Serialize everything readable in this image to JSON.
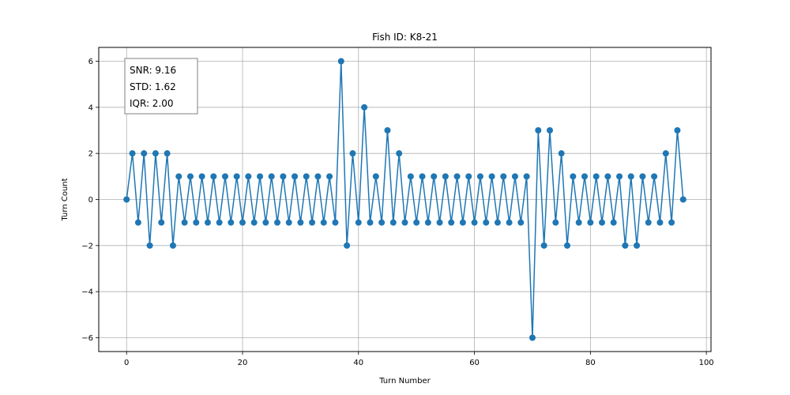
{
  "chart_data": {
    "type": "line",
    "title": "Fish ID: K8-21",
    "xlabel": "Turn Number",
    "ylabel": "Turn Count",
    "xlim": [
      -4.8,
      100.8
    ],
    "ylim": [
      -6.6,
      6.6
    ],
    "xticks": [
      0,
      20,
      40,
      60,
      80,
      100
    ],
    "yticks": [
      -6,
      -4,
      -2,
      0,
      2,
      4,
      6
    ],
    "ytick_labels": [
      "−6",
      "−4",
      "−2",
      "0",
      "2",
      "4",
      "6"
    ],
    "xtick_labels": [
      "0",
      "20",
      "40",
      "60",
      "80",
      "100"
    ],
    "grid": true,
    "marker": "circle",
    "color": "#1f77b4",
    "series": [
      {
        "x": [
          0,
          1,
          2,
          3,
          4,
          5,
          6,
          7,
          8,
          9,
          10,
          11,
          12,
          13,
          14,
          15,
          16,
          17,
          18,
          19,
          20,
          21,
          22,
          23,
          24,
          25,
          26,
          27,
          28,
          29,
          30,
          31,
          32,
          33,
          34,
          35,
          36,
          37,
          38,
          39,
          40,
          41,
          42,
          43,
          44,
          45,
          46,
          47,
          48,
          49,
          50,
          51,
          52,
          53,
          54,
          55,
          56,
          57,
          58,
          59,
          60,
          61,
          62,
          63,
          64,
          65,
          66,
          67,
          68,
          69,
          70,
          71,
          72,
          73,
          74,
          75,
          76,
          77,
          78,
          79,
          80,
          81,
          82,
          83,
          84,
          85,
          86,
          87,
          88,
          89,
          90,
          91,
          92,
          93,
          94,
          95,
          96
        ],
        "values": [
          0,
          2,
          -1,
          2,
          -2,
          2,
          -1,
          2,
          -2,
          1,
          -1,
          1,
          -1,
          1,
          -1,
          1,
          -1,
          1,
          -1,
          1,
          -1,
          1,
          -1,
          1,
          -1,
          1,
          -1,
          1,
          -1,
          1,
          -1,
          1,
          -1,
          1,
          -1,
          1,
          -1,
          6,
          -2,
          2,
          -1,
          4,
          -1,
          1,
          -1,
          3,
          -1,
          2,
          -1,
          1,
          -1,
          1,
          -1,
          1,
          -1,
          1,
          -1,
          1,
          -1,
          1,
          -1,
          1,
          -1,
          1,
          -1,
          1,
          -1,
          1,
          -1,
          1,
          -6,
          3,
          -2,
          3,
          -1,
          2,
          -2,
          1,
          -1,
          1,
          -1,
          1,
          -1,
          1,
          -1,
          1,
          -2,
          1,
          -2,
          1,
          -1,
          1,
          -1,
          2,
          -1,
          3,
          0
        ]
      }
    ],
    "annotation": {
      "lines": [
        "SNR: 9.16",
        "STD: 1.62",
        "IQR: 2.00"
      ],
      "placement": "top-left"
    }
  }
}
